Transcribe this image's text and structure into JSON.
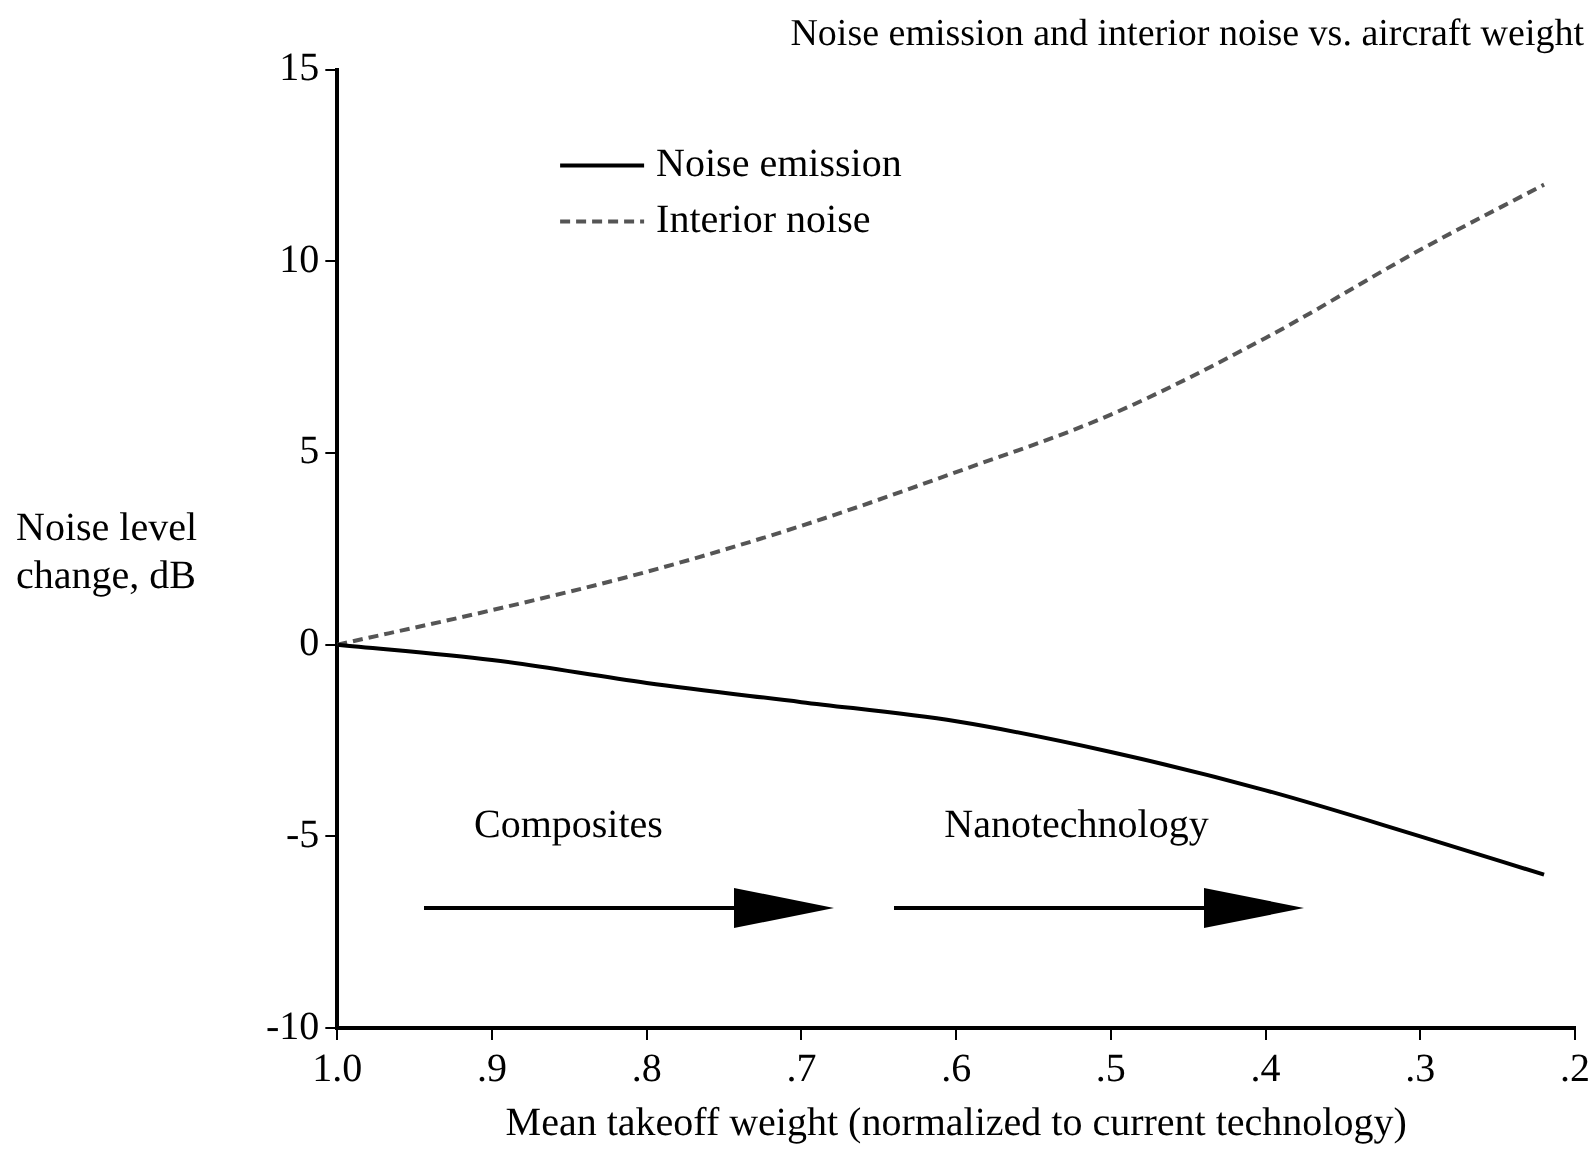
{
  "chart_data": {
    "type": "line",
    "title": "Noise emission and interior noise vs. aircraft weight",
    "xlabel": "Mean takeoff weight (normalized to current technology)",
    "ylabel": "Noise level change, dB",
    "x": [
      1.0,
      0.9,
      0.8,
      0.7,
      0.6,
      0.5,
      0.4,
      0.3,
      0.22
    ],
    "series": [
      {
        "name": "Noise emission",
        "color": "#000000",
        "line_style": "solid",
        "values": [
          0,
          -0.4,
          -1.0,
          -1.5,
          -2.0,
          -2.8,
          -3.8,
          -5.0,
          -6.0
        ]
      },
      {
        "name": "Interior noise",
        "color": "#555555",
        "line_style": "dashed",
        "values": [
          0,
          0.9,
          1.9,
          3.1,
          4.5,
          6.0,
          8.0,
          10.3,
          12.0
        ]
      }
    ],
    "xlim": [
      1.0,
      0.2
    ],
    "xticks": [
      {
        "value": 1.0,
        "label": "1.0"
      },
      {
        "value": 0.9,
        "label": ".9"
      },
      {
        "value": 0.8,
        "label": ".8"
      },
      {
        "value": 0.7,
        "label": ".7"
      },
      {
        "value": 0.6,
        "label": ".6"
      },
      {
        "value": 0.5,
        "label": ".5"
      },
      {
        "value": 0.4,
        "label": ".4"
      },
      {
        "value": 0.3,
        "label": ".3"
      },
      {
        "value": 0.2,
        "label": ".2"
      }
    ],
    "ylim": [
      -10,
      15
    ],
    "yticks": [
      -10,
      -5,
      0,
      5,
      10,
      15
    ],
    "annotations": [
      "Composites",
      "Nanotechnology"
    ],
    "grid": false,
    "legend": "top",
    "marker": "none"
  }
}
